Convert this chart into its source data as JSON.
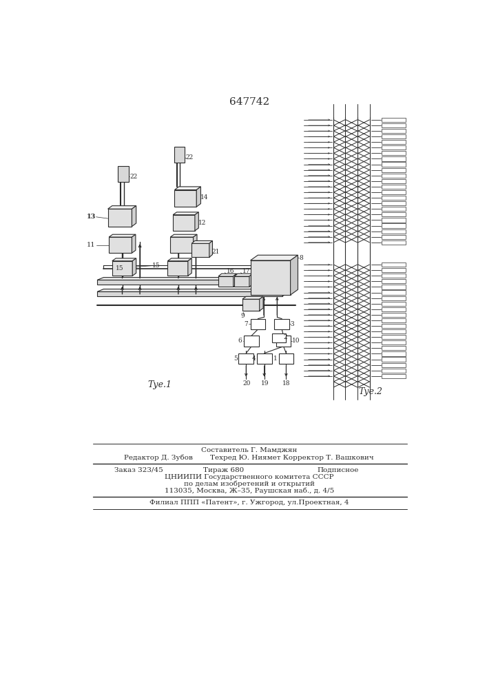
{
  "title": "647742",
  "fig1_label": "τуе.1",
  "fig2_label": "τуе.2",
  "lc": "#2a2a2a",
  "footer_line0": "Составитель Г. Мамджян",
  "footer_left1": "Редактор Д. Зубов",
  "footer_right1": "Техред Ю. Ниямет Корректор Т. Вашкович",
  "footer_order": "Заказ 323/45",
  "footer_tirazh": "Тираж 680",
  "footer_podp": "Подписное",
  "footer_cniip": "ЦНИИПИ Государственного комитета СССР",
  "footer_po": "по делам изобретений и открытий",
  "footer_addr": "113035, Москва, Ж–35, Раушская наб., д. 4/5",
  "footer_filial": "Филиал ППП «Патент», г. Ужгород, ул.Проектная, 4"
}
